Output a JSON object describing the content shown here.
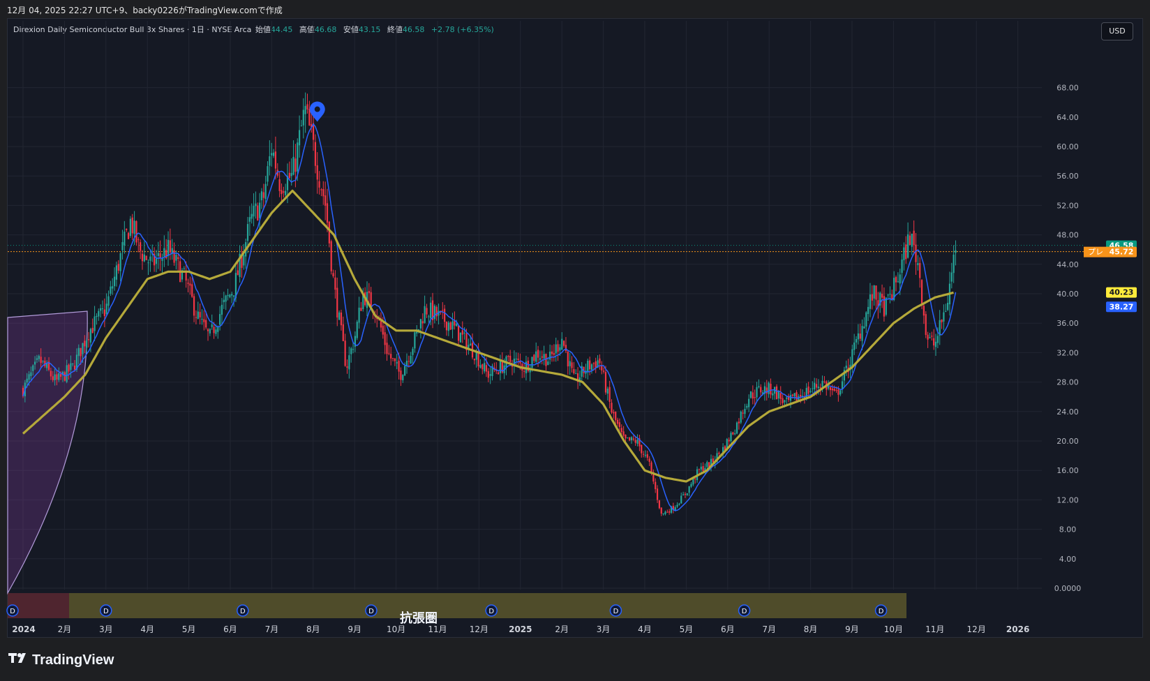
{
  "header": {
    "caption": "12月 04, 2025 22:27 UTC+9、backy0226がTradingView.comで作成"
  },
  "legend": {
    "symbol": "Direxion Daily Semiconductor Bull 3x Shares · 1日 · NYSE Arca",
    "open_label": "始値",
    "open": "44.45",
    "high_label": "高値",
    "high": "46.68",
    "low_label": "安値",
    "low": "43.15",
    "close_label": "終値",
    "close": "46.58",
    "change": "+2.78 (+6.35%)"
  },
  "currency": "USD",
  "brand": "TradingView",
  "watermark": "抗張圏",
  "colors": {
    "background": "#151924",
    "up": "#26a69a",
    "down": "#f23645",
    "fast_ma": "#2962ff",
    "slow_ma": "#b5a93a",
    "price_tag": "#089981",
    "pre_tag": "#f7931a",
    "slow_tag": "#ffeb3b",
    "fast_tag": "#2962ff"
  },
  "price_tags": [
    {
      "label": "",
      "value": "46.58",
      "kind": "last"
    },
    {
      "label": "プレ",
      "value": "45.72",
      "kind": "pre"
    },
    {
      "label": "",
      "value": "40.23",
      "kind": "slow"
    },
    {
      "label": "",
      "value": "38.27",
      "kind": "fast"
    }
  ],
  "dividend_marker": "D",
  "dividend_months": [
    0.0,
    2.0,
    5.3,
    8.4,
    11.3,
    14.3,
    17.4,
    20.7
  ],
  "chart_data": {
    "type": "candlestick",
    "ylim": [
      0,
      70
    ],
    "yticks": [
      "0.0000",
      "4.00",
      "8.00",
      "12.00",
      "16.00",
      "20.00",
      "24.00",
      "28.00",
      "32.00",
      "36.00",
      "40.00",
      "44.00",
      "48.00",
      "52.00",
      "56.00",
      "60.00",
      "64.00",
      "68.00"
    ],
    "x_labels": [
      "2024",
      "2月",
      "3月",
      "4月",
      "5月",
      "6月",
      "7月",
      "8月",
      "9月",
      "10月",
      "11月",
      "12月",
      "2025",
      "2月",
      "3月",
      "4月",
      "5月",
      "6月",
      "7月",
      "8月",
      "9月",
      "10月",
      "11月",
      "12月",
      "2026"
    ],
    "series": [
      {
        "price_keypoints": [
          [
            0,
            27
          ],
          [
            0.4,
            31
          ],
          [
            0.8,
            28
          ],
          [
            1.2,
            30
          ],
          [
            1.6,
            35
          ],
          [
            2.0,
            38
          ],
          [
            2.3,
            44
          ],
          [
            2.6,
            50
          ],
          [
            2.8,
            46
          ],
          [
            3.1,
            44
          ],
          [
            3.5,
            46
          ],
          [
            3.9,
            42
          ],
          [
            4.2,
            37
          ],
          [
            4.5,
            34
          ],
          [
            4.8,
            38
          ],
          [
            5.1,
            41
          ],
          [
            5.5,
            50
          ],
          [
            5.8,
            53
          ],
          [
            6.0,
            60
          ],
          [
            6.2,
            55
          ],
          [
            6.5,
            56
          ],
          [
            6.8,
            65
          ],
          [
            7.0,
            60
          ],
          [
            7.3,
            52
          ],
          [
            7.5,
            41
          ],
          [
            7.8,
            30
          ],
          [
            8.0,
            34
          ],
          [
            8.2,
            40
          ],
          [
            8.5,
            38
          ],
          [
            8.8,
            32
          ],
          [
            9.1,
            29
          ],
          [
            9.4,
            33
          ],
          [
            9.7,
            38
          ],
          [
            10.0,
            37
          ],
          [
            10.3,
            36
          ],
          [
            10.6,
            34
          ],
          [
            10.9,
            32
          ],
          [
            11.2,
            29
          ],
          [
            11.5,
            30
          ],
          [
            11.8,
            31
          ],
          [
            12.1,
            30
          ],
          [
            12.4,
            32
          ],
          [
            12.7,
            31
          ],
          [
            13.0,
            34
          ],
          [
            13.3,
            28
          ],
          [
            13.6,
            30
          ],
          [
            13.9,
            31
          ],
          [
            14.2,
            24
          ],
          [
            14.5,
            20
          ],
          [
            14.8,
            20
          ],
          [
            15.1,
            17
          ],
          [
            15.4,
            10
          ],
          [
            15.7,
            11
          ],
          [
            16.0,
            13
          ],
          [
            16.3,
            16
          ],
          [
            16.6,
            17
          ],
          [
            16.9,
            19
          ],
          [
            17.2,
            22
          ],
          [
            17.5,
            26
          ],
          [
            17.8,
            27
          ],
          [
            18.1,
            27
          ],
          [
            18.4,
            25
          ],
          [
            18.7,
            26
          ],
          [
            19.0,
            27
          ],
          [
            19.3,
            28
          ],
          [
            19.6,
            26
          ],
          [
            19.9,
            30
          ],
          [
            20.2,
            35
          ],
          [
            20.5,
            40
          ],
          [
            20.8,
            38
          ],
          [
            21.1,
            42
          ],
          [
            21.4,
            48
          ],
          [
            21.6,
            44
          ],
          [
            21.8,
            34
          ],
          [
            22.0,
            33
          ],
          [
            22.3,
            39
          ],
          [
            22.5,
            46.58
          ]
        ],
        "slow_ma_keypoints": [
          [
            0,
            21
          ],
          [
            1.0,
            26
          ],
          [
            1.5,
            29
          ],
          [
            2.0,
            34
          ],
          [
            2.5,
            38
          ],
          [
            3.0,
            42
          ],
          [
            3.5,
            43
          ],
          [
            4.0,
            43
          ],
          [
            4.5,
            42
          ],
          [
            5.0,
            43
          ],
          [
            5.5,
            47
          ],
          [
            6.0,
            51
          ],
          [
            6.5,
            54
          ],
          [
            7.0,
            51
          ],
          [
            7.5,
            48
          ],
          [
            8.0,
            42
          ],
          [
            8.5,
            37
          ],
          [
            9.0,
            35
          ],
          [
            9.5,
            35
          ],
          [
            10.0,
            34
          ],
          [
            10.5,
            33
          ],
          [
            11.0,
            32
          ],
          [
            11.5,
            31
          ],
          [
            12.0,
            30
          ],
          [
            12.5,
            29.5
          ],
          [
            13.0,
            29
          ],
          [
            13.5,
            28
          ],
          [
            14.0,
            25
          ],
          [
            14.5,
            20
          ],
          [
            15.0,
            16
          ],
          [
            15.5,
            15
          ],
          [
            16.0,
            14.5
          ],
          [
            16.5,
            16
          ],
          [
            17.0,
            19
          ],
          [
            17.5,
            22
          ],
          [
            18.0,
            24
          ],
          [
            18.5,
            25
          ],
          [
            19.0,
            26
          ],
          [
            19.5,
            28
          ],
          [
            20.0,
            30
          ],
          [
            20.5,
            33
          ],
          [
            21.0,
            36
          ],
          [
            21.5,
            38
          ],
          [
            22.0,
            39.5
          ],
          [
            22.5,
            40.23
          ]
        ]
      }
    ]
  }
}
